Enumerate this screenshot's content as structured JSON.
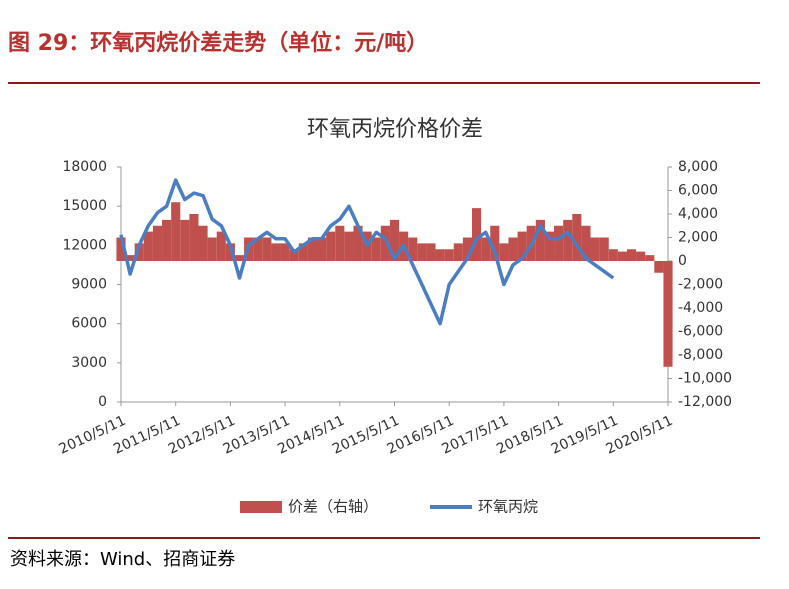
{
  "header": {
    "title": "图 29：环氧丙烷价差走势（单位：元/吨）"
  },
  "chart_data": {
    "type": "combo",
    "title": "环氧丙烷价格价差",
    "categories": [
      "2010/5/11",
      null,
      null,
      null,
      null,
      null,
      "2011/5/11",
      null,
      null,
      null,
      null,
      null,
      "2012/5/11",
      null,
      null,
      null,
      null,
      null,
      "2013/5/11",
      null,
      null,
      null,
      null,
      null,
      "2014/5/11",
      null,
      null,
      null,
      null,
      null,
      "2015/5/11",
      null,
      null,
      null,
      null,
      null,
      "2016/5/11",
      null,
      null,
      null,
      null,
      null,
      "2017/5/11",
      null,
      null,
      null,
      null,
      null,
      "2018/5/11",
      null,
      null,
      null,
      null,
      null,
      "2019/5/11",
      null,
      null,
      null,
      null,
      null,
      "2020/5/11"
    ],
    "series": [
      {
        "name": "价差（右轴）",
        "type": "bar",
        "axis": "y2",
        "color": "#c0504d",
        "values": [
          2000,
          500,
          1500,
          2500,
          3000,
          3500,
          5000,
          3500,
          4000,
          3000,
          2000,
          2500,
          1500,
          500,
          2000,
          2000,
          2000,
          1500,
          1500,
          1000,
          1500,
          2000,
          2000,
          2500,
          3000,
          2500,
          3000,
          2500,
          2000,
          3000,
          3500,
          2500,
          2000,
          1500,
          1500,
          1000,
          1000,
          1500,
          2000,
          4500,
          2000,
          3000,
          1500,
          2000,
          2500,
          3000,
          3500,
          2500,
          3000,
          3500,
          4000,
          3000,
          2000,
          2000,
          1000,
          800,
          1000,
          800,
          500,
          -1000,
          -9000
        ]
      },
      {
        "name": "环氧丙烷",
        "type": "line",
        "color": "#4a7ec2",
        "values": [
          12800,
          9800,
          12000,
          13500,
          14500,
          15000,
          17000,
          15500,
          16000,
          15800,
          14000,
          13500,
          12000,
          9500,
          12000,
          12500,
          13000,
          12500,
          12500,
          11500,
          12000,
          12500,
          12500,
          13500,
          14000,
          15000,
          13500,
          12000,
          13000,
          12500,
          11000,
          12000,
          10500,
          9000,
          7500,
          6000,
          9000,
          10000,
          11000,
          12500,
          13000,
          11500,
          9000,
          10500,
          11000,
          12000,
          13500,
          12500,
          12500,
          13000,
          12000,
          11000,
          10500,
          10000,
          9500,
          null,
          null,
          null,
          null,
          null,
          null
        ]
      }
    ],
    "ylim": [
      0,
      18000
    ],
    "yticks": [
      0,
      3000,
      6000,
      9000,
      12000,
      15000,
      18000
    ],
    "y2lim": [
      -12000,
      8000
    ],
    "y2ticks": [
      {
        "value": -12000,
        "label": "-12,000"
      },
      {
        "value": -10000,
        "label": "-10,000"
      },
      {
        "value": -8000,
        "label": "-8,000"
      },
      {
        "value": -6000,
        "label": "-6,000"
      },
      {
        "value": -4000,
        "label": "-4,000"
      },
      {
        "value": -2000,
        "label": "-2,000"
      },
      0,
      {
        "value": 2000,
        "label": "2,000"
      },
      {
        "value": 4000,
        "label": "4,000"
      },
      {
        "value": 6000,
        "label": "6,000"
      },
      {
        "value": 8000,
        "label": "8,000"
      }
    ],
    "legend": "bottom"
  },
  "source": "资料来源：Wind、招商证券"
}
